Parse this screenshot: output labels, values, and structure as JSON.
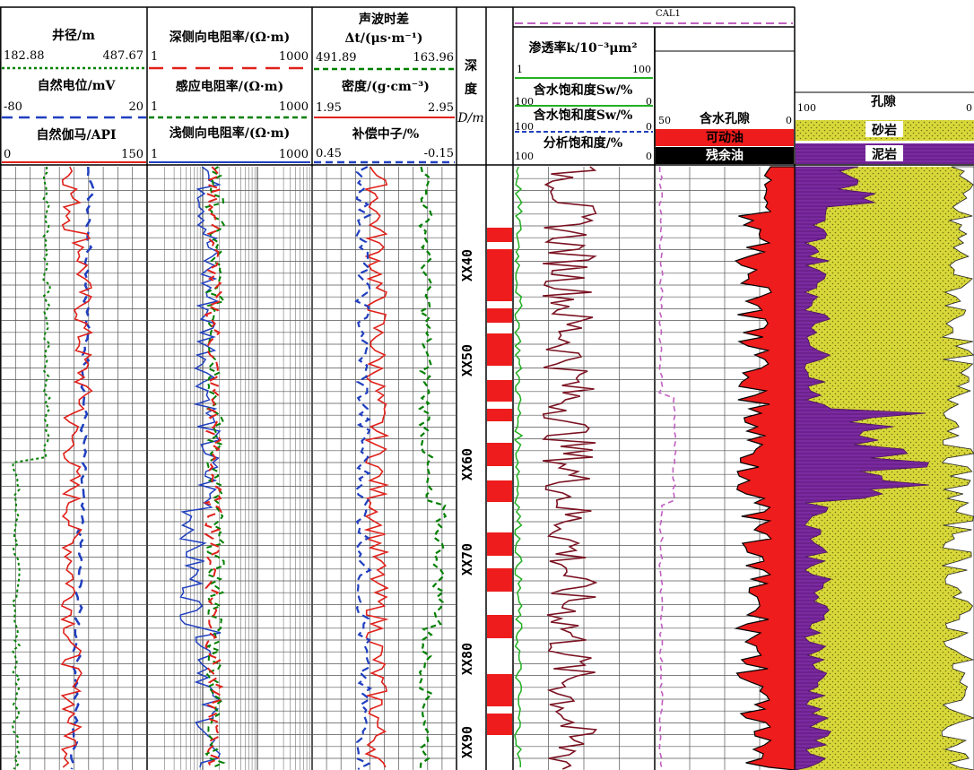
{
  "chart_data": [
    {
      "type": "line",
      "track": "well-log-track-1",
      "series": [
        {
          "name": "井径/m",
          "color": "#008000",
          "style": "dotted",
          "scale": [
            182.88,
            487.67
          ]
        },
        {
          "name": "自然电位/mV",
          "color": "#1f3fbf",
          "style": "dashed",
          "scale": [
            -80,
            20
          ]
        },
        {
          "name": "自然伽马/API",
          "color": "#e0201a",
          "style": "solid",
          "scale": [
            0,
            150
          ]
        }
      ],
      "headers": {
        "caliper_title": "井径/m",
        "caliper_min": "182.88",
        "caliper_max": "487.67",
        "sp_title": "自然电位/mV",
        "sp_min": "-80",
        "sp_max": "20",
        "gr_title": "自然伽马/API",
        "gr_min": "0",
        "gr_max": "150"
      }
    },
    {
      "type": "line",
      "track": "well-log-track-2",
      "series": [
        {
          "name": "深侧向电阻率/(Ω·m)",
          "color": "#e0201a",
          "style": "dashed",
          "scale": [
            1,
            1000
          ],
          "log": true
        },
        {
          "name": "感应电阻率/(Ω·m)",
          "color": "#008000",
          "style": "dashed",
          "scale": [
            1,
            1000
          ],
          "log": true
        },
        {
          "name": "浅侧向电阻率/(Ω·m)",
          "color": "#1f3fbf",
          "style": "solid",
          "scale": [
            1,
            1000
          ],
          "log": true
        }
      ],
      "headers": {
        "lld_title": "深侧向电阻率/(Ω·m)",
        "lld_min": "1",
        "lld_max": "1000",
        "ind_title": "感应电阻率/(Ω·m)",
        "ind_min": "1",
        "ind_max": "1000",
        "lls_title": "浅侧向电阻率/(Ω·m)",
        "lls_min": "1",
        "lls_max": "1000"
      }
    },
    {
      "type": "line",
      "track": "well-log-track-3",
      "series": [
        {
          "name": "声波时差",
          "color": "#1f3fbf",
          "style": "dashed",
          "scale": [
            491.89,
            163.96
          ]
        },
        {
          "name": "密度/(g·cm⁻³)",
          "color": "#008000",
          "style": "dashed",
          "scale": [
            1.95,
            2.95
          ]
        },
        {
          "name": "补偿中子/%",
          "color": "#e0201a",
          "style": "solid",
          "scale": [
            0.45,
            -0.15
          ]
        }
      ],
      "headers": {
        "ac_title1": "声波时差",
        "ac_title2": "Δt/(μs·m⁻¹)",
        "ac_min": "491.89",
        "ac_max": "163.96",
        "den_title": "密度/(g·cm⁻³)",
        "den_min": "1.95",
        "den_max": "2.95",
        "cnl_title": "补偿中子/%",
        "cnl_min": "0.45",
        "cnl_max": "-0.15"
      }
    },
    {
      "type": "table",
      "track": "depth-track",
      "depth_label_1": "深",
      "depth_label_2": "度",
      "depth_label_3": "D/m",
      "depth_ticks": [
        "XX40",
        "XX50",
        "XX60",
        "XX70",
        "XX80",
        "XX90"
      ]
    },
    {
      "type": "line",
      "track": "permeability-saturation-track",
      "series": [
        {
          "name": "渗透率k/10⁻³μm²",
          "color": "#7a1020",
          "scale": [
            1,
            100
          ]
        },
        {
          "name": "含水饱和度Sw/%",
          "color": "#22b022",
          "scale": [
            100,
            0
          ]
        },
        {
          "name": "含水饱和度Sw/%",
          "color": "#000000",
          "scale": [
            100,
            0
          ]
        },
        {
          "name": "分析饱和度/%",
          "color": "#1f3fbf",
          "style": "dashed",
          "scale": [
            100,
            0
          ]
        }
      ],
      "headers": {
        "cal_title": "CAL1",
        "perm_title": "渗透率k/10⁻³μm²",
        "perm_min": "1",
        "perm_max": "100",
        "sw1_title": "含水饱和度Sw/%",
        "sw1_min": "100",
        "sw1_max": "0",
        "sw2_title": "含水饱和度Sw/%",
        "sw2_min": "100",
        "sw2_max": "0",
        "as_title": "分析饱和度/%",
        "as_min": "100",
        "as_max": "0"
      }
    },
    {
      "type": "area",
      "track": "fluid-track",
      "headers": {
        "wp_title": "含水孔隙",
        "wp_min": "50",
        "wp_max": "0",
        "movable_oil": "可动油",
        "residual_oil": "残余油"
      },
      "colors": {
        "movable_oil": "#ee1c1c",
        "residual_oil": "#000000",
        "water": "#2a3a9a"
      }
    },
    {
      "type": "area",
      "track": "lithology-track",
      "headers": {
        "porosity_title": "孔隙",
        "porosity_min": "100",
        "porosity_max": "0",
        "sandstone": "砂岩",
        "mudstone": "泥岩"
      },
      "colors": {
        "sandstone": "#d8d83a",
        "mudstone": "#7b2aa0"
      }
    }
  ]
}
